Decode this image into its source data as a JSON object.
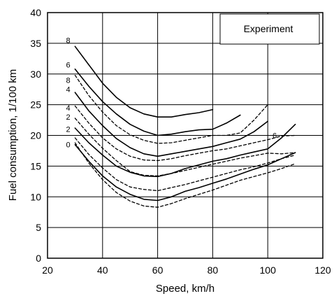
{
  "chart_data": {
    "type": "line",
    "title": "",
    "xlabel": "Speed, km/h",
    "ylabel": "Fuel consumption, 1/100 km",
    "xlim": [
      20,
      120
    ],
    "ylim": [
      0,
      40
    ],
    "xticks": [
      20,
      40,
      60,
      80,
      100,
      120
    ],
    "yticks": [
      0,
      5,
      10,
      15,
      20,
      25,
      30,
      35,
      40
    ],
    "grid": true,
    "legend_text": "Experiment",
    "legend_placement": "top-right",
    "series": [
      {
        "label": "8",
        "style": "solid",
        "points": [
          [
            30,
            34.5
          ],
          [
            35,
            31.5
          ],
          [
            40,
            28.5
          ],
          [
            45,
            26.2
          ],
          [
            50,
            24.5
          ],
          [
            55,
            23.5
          ],
          [
            60,
            23.0
          ],
          [
            65,
            23.0
          ],
          [
            70,
            23.4
          ],
          [
            75,
            23.7
          ],
          [
            80,
            24.2
          ]
        ]
      },
      {
        "label": "6",
        "style": "solid",
        "points": [
          [
            30,
            30.8
          ],
          [
            35,
            28.0
          ],
          [
            40,
            25.5
          ],
          [
            45,
            23.5
          ],
          [
            50,
            21.8
          ],
          [
            55,
            20.7
          ],
          [
            60,
            20.0
          ],
          [
            65,
            20.2
          ],
          [
            70,
            20.6
          ],
          [
            75,
            20.9
          ],
          [
            80,
            21.0
          ],
          [
            85,
            22.0
          ],
          [
            90,
            23.3
          ]
        ]
      },
      {
        "label": "4",
        "style": "solid",
        "points": [
          [
            30,
            27.0
          ],
          [
            35,
            24.0
          ],
          [
            40,
            21.6
          ],
          [
            45,
            19.5
          ],
          [
            50,
            18.0
          ],
          [
            55,
            17.0
          ],
          [
            60,
            16.6
          ],
          [
            65,
            17.0
          ],
          [
            70,
            17.4
          ],
          [
            75,
            17.8
          ],
          [
            80,
            18.2
          ],
          [
            85,
            18.8
          ],
          [
            90,
            19.4
          ],
          [
            95,
            20.6
          ],
          [
            100,
            22.3
          ]
        ]
      },
      {
        "label": "2",
        "style": "solid",
        "points": [
          [
            30,
            21.2
          ],
          [
            35,
            18.8
          ],
          [
            40,
            16.8
          ],
          [
            45,
            15.0
          ],
          [
            50,
            14.0
          ],
          [
            55,
            13.4
          ],
          [
            60,
            13.3
          ],
          [
            65,
            13.8
          ],
          [
            70,
            14.6
          ],
          [
            75,
            15.2
          ],
          [
            80,
            15.8
          ],
          [
            85,
            16.2
          ],
          [
            90,
            16.8
          ],
          [
            95,
            17.3
          ],
          [
            100,
            17.8
          ],
          [
            105,
            19.6
          ],
          [
            110,
            21.8
          ]
        ]
      },
      {
        "label": "0",
        "style": "solid",
        "points": [
          [
            30,
            18.5
          ],
          [
            35,
            15.8
          ],
          [
            40,
            13.4
          ],
          [
            45,
            11.6
          ],
          [
            50,
            10.4
          ],
          [
            55,
            9.6
          ],
          [
            60,
            9.4
          ],
          [
            65,
            10.0
          ],
          [
            70,
            10.9
          ],
          [
            75,
            11.5
          ],
          [
            80,
            12.2
          ],
          [
            85,
            12.9
          ],
          [
            90,
            13.7
          ],
          [
            95,
            14.5
          ],
          [
            100,
            15.2
          ],
          [
            105,
            16.2
          ],
          [
            110,
            17.2
          ]
        ]
      },
      {
        "label": "8",
        "style": "dashed",
        "points": [
          [
            30,
            29.8
          ],
          [
            35,
            26.5
          ],
          [
            40,
            23.8
          ],
          [
            45,
            21.6
          ],
          [
            50,
            20.1
          ],
          [
            55,
            19.2
          ],
          [
            60,
            18.7
          ],
          [
            65,
            18.8
          ],
          [
            70,
            19.2
          ],
          [
            75,
            19.6
          ],
          [
            80,
            20.0
          ],
          [
            85,
            20.0
          ],
          [
            90,
            20.4
          ],
          [
            95,
            22.5
          ],
          [
            100,
            25.0
          ]
        ]
      },
      {
        "label": "4",
        "style": "dashed",
        "points": [
          [
            30,
            24.8
          ],
          [
            35,
            22.0
          ],
          [
            40,
            19.6
          ],
          [
            45,
            17.8
          ],
          [
            50,
            16.6
          ],
          [
            55,
            16.0
          ],
          [
            60,
            15.9
          ],
          [
            65,
            16.2
          ],
          [
            70,
            16.7
          ],
          [
            75,
            17.1
          ],
          [
            80,
            17.5
          ],
          [
            85,
            17.8
          ],
          [
            90,
            18.3
          ],
          [
            95,
            18.8
          ],
          [
            100,
            19.3
          ],
          [
            105,
            19.9
          ],
          [
            110,
            20.0
          ]
        ]
      },
      {
        "label": "2",
        "style": "dashed",
        "points": [
          [
            30,
            22.8
          ],
          [
            35,
            20.2
          ],
          [
            40,
            17.9
          ],
          [
            45,
            15.9
          ],
          [
            50,
            14.1
          ],
          [
            55,
            13.5
          ],
          [
            60,
            13.4
          ],
          [
            65,
            13.8
          ],
          [
            70,
            14.3
          ],
          [
            75,
            14.8
          ],
          [
            80,
            15.3
          ],
          [
            85,
            15.8
          ],
          [
            90,
            16.3
          ],
          [
            95,
            16.7
          ],
          [
            100,
            17.1
          ],
          [
            105,
            17.0
          ],
          [
            110,
            17.2
          ]
        ]
      },
      {
        "label": "",
        "style": "dashed",
        "points": [
          [
            30,
            19.6
          ],
          [
            35,
            16.9
          ],
          [
            40,
            14.7
          ],
          [
            45,
            12.8
          ],
          [
            50,
            11.6
          ],
          [
            55,
            11.2
          ],
          [
            60,
            11.0
          ],
          [
            65,
            11.5
          ],
          [
            70,
            12.0
          ],
          [
            75,
            12.6
          ],
          [
            80,
            13.2
          ],
          [
            85,
            13.8
          ],
          [
            90,
            14.4
          ],
          [
            95,
            14.9
          ],
          [
            100,
            15.5
          ],
          [
            105,
            16.2
          ],
          [
            110,
            16.8
          ]
        ]
      },
      {
        "label": "",
        "style": "dashed",
        "points": [
          [
            30,
            18.8
          ],
          [
            35,
            15.5
          ],
          [
            40,
            12.8
          ],
          [
            45,
            10.7
          ],
          [
            50,
            9.3
          ],
          [
            55,
            8.5
          ],
          [
            60,
            8.3
          ],
          [
            65,
            8.9
          ],
          [
            70,
            9.7
          ],
          [
            75,
            10.4
          ],
          [
            80,
            11.1
          ],
          [
            85,
            11.9
          ],
          [
            90,
            12.7
          ],
          [
            95,
            13.3
          ],
          [
            100,
            13.9
          ],
          [
            105,
            14.6
          ],
          [
            110,
            15.4
          ]
        ]
      }
    ],
    "curve_labels": [
      {
        "text": "8",
        "x": 27.5,
        "y": 35.5
      },
      {
        "text": "6",
        "x": 27.5,
        "y": 31.5
      },
      {
        "text": "8",
        "x": 27.5,
        "y": 29.0
      },
      {
        "text": "4",
        "x": 27.5,
        "y": 27.5
      },
      {
        "text": "4",
        "x": 27.5,
        "y": 24.5
      },
      {
        "text": "2",
        "x": 27.5,
        "y": 23.0
      },
      {
        "text": "2",
        "x": 27.5,
        "y": 21.0
      },
      {
        "text": "0",
        "x": 27.5,
        "y": 18.5
      },
      {
        "text": "6",
        "x": 102.5,
        "y": 20.0
      }
    ]
  }
}
